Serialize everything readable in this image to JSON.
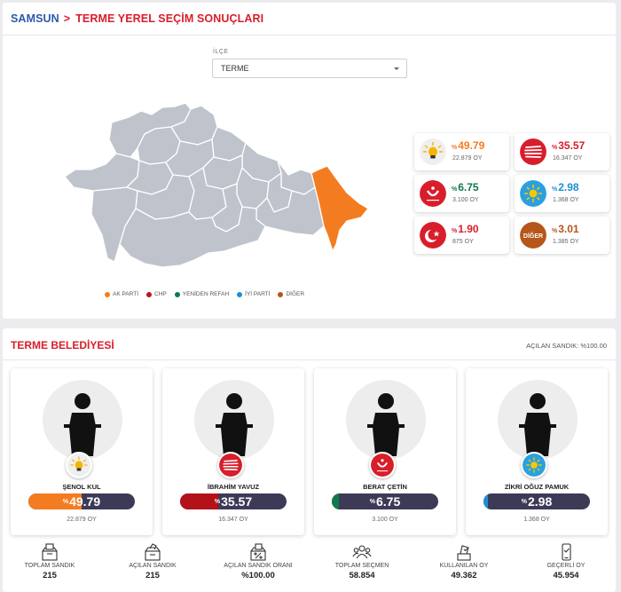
{
  "header": {
    "province": "SAMSUN",
    "separator": ">",
    "title": "TERME YEREL SEÇİM SONUÇLARI"
  },
  "filter": {
    "label": "İLÇE",
    "selected": "TERME"
  },
  "legend": [
    {
      "label": "AK PARTİ",
      "color": "#f47c20"
    },
    {
      "label": "CHP",
      "color": "#c0141c"
    },
    {
      "label": "YENİDEN REFAH",
      "color": "#0f7a4b"
    },
    {
      "label": "İYİ PARTİ",
      "color": "#1e8fd6"
    },
    {
      "label": "DİĞER",
      "color": "#b5561b"
    }
  ],
  "results": [
    {
      "party": "AK PARTİ",
      "percent_symbol": "%",
      "percent": "49.79",
      "votes": "22.879 OY",
      "color": "#f47c20",
      "logo": "ak-parti-bulb-logo"
    },
    {
      "party": "CHP",
      "percent_symbol": "%",
      "percent": "35.57",
      "votes": "16.347 OY",
      "color": "#d81e2b",
      "logo": "chp-arrows-logo"
    },
    {
      "party": "YENİDEN REFAH",
      "percent_symbol": "%",
      "percent": "6.75",
      "votes": "3.100 OY",
      "color": "#0f7a4b",
      "logo": "yeniden-refah-logo"
    },
    {
      "party": "İYİ PARTİ",
      "percent_symbol": "%",
      "percent": "2.98",
      "votes": "1.368 OY",
      "color": "#1e8fd6",
      "logo": "iyi-parti-sun-logo"
    },
    {
      "party": "SAADET",
      "percent_symbol": "%",
      "percent": "1.90",
      "votes": "875 OY",
      "color": "#d81e2b",
      "logo": "saadet-crescent-logo"
    },
    {
      "party": "DİĞER",
      "percent_symbol": "%",
      "percent": "3.01",
      "votes": "1.385 OY",
      "color": "#b5561b",
      "logo": "diger-logo",
      "logo_text": "DİĞER"
    }
  ],
  "municipality": {
    "title": "TERME BELEDİYESİ",
    "opened_ballots": "AÇILAN SANDIK: %100.00"
  },
  "candidates": [
    {
      "name": "ŞENOL KUL",
      "percent_symbol": "%",
      "percent": "49.79",
      "share": 0.4979,
      "votes": "22.879 OY",
      "color": "#f47c20",
      "logo": "ak-parti-bulb-logo"
    },
    {
      "name": "İBRAHİM YAVUZ",
      "percent_symbol": "%",
      "percent": "35.57",
      "share": 0.3557,
      "votes": "16.347 OY",
      "color": "#b3121b",
      "logo": "chp-arrows-logo"
    },
    {
      "name": "BERAT ÇETİN",
      "percent_symbol": "%",
      "percent": "6.75",
      "share": 0.0675,
      "votes": "3.100 OY",
      "color": "#0f7a4b",
      "logo": "yeniden-refah-logo"
    },
    {
      "name": "ZİKRİ OĞUZ PAMUK",
      "percent_symbol": "%",
      "percent": "2.98",
      "share": 0.0298,
      "votes": "1.368 OY",
      "color": "#1e8fd6",
      "logo": "iyi-parti-sun-logo"
    }
  ],
  "stats": [
    {
      "label": "TOPLAM SANDIK",
      "value": "215",
      "icon": "ballot-box-icon"
    },
    {
      "label": "AÇILAN SANDIK",
      "value": "215",
      "icon": "open-ballot-box-icon"
    },
    {
      "label": "AÇILAN SANDIK ORANI",
      "value": "%100.00",
      "icon": "ballot-box-percent-icon"
    },
    {
      "label": "TOPLAM SEÇMEN",
      "value": "58.854",
      "icon": "voters-group-icon"
    },
    {
      "label": "KULLANILAN OY",
      "value": "49.362",
      "icon": "vote-cast-icon"
    },
    {
      "label": "GEÇERLİ OY",
      "value": "45.954",
      "icon": "valid-vote-phone-icon"
    }
  ]
}
